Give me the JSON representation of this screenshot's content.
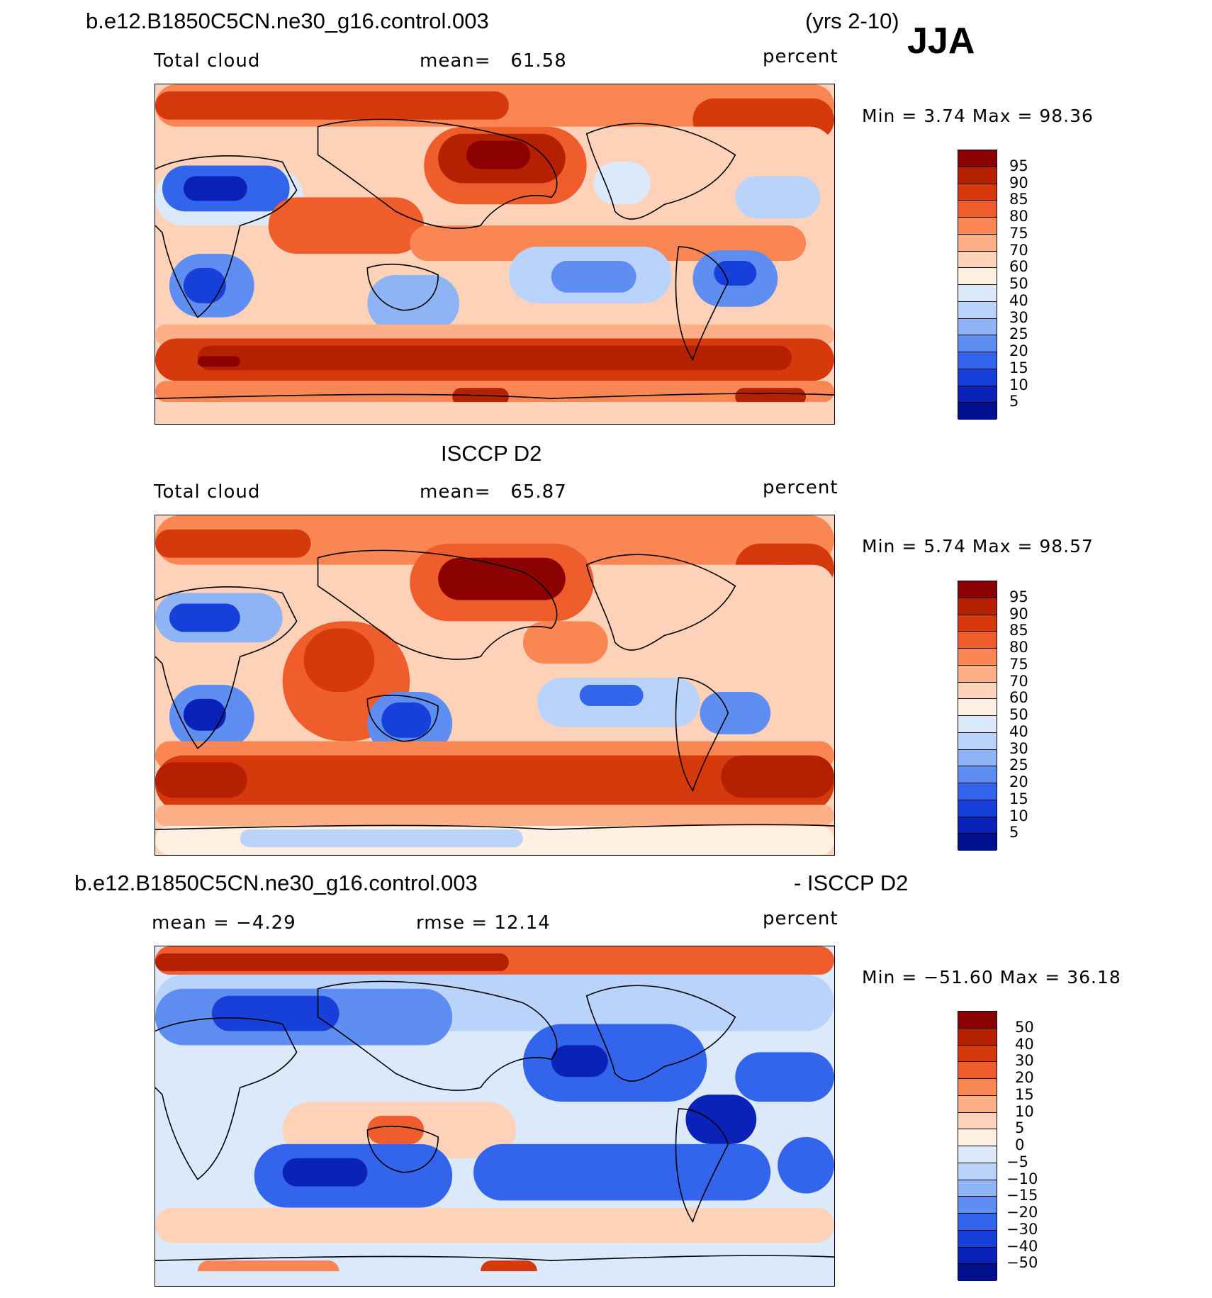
{
  "figure": {
    "case_name": "b.e12.B1850C5CN.ne30_g16.control.003",
    "years": "(yrs 2-10)",
    "season": "JJA"
  },
  "panels": [
    {
      "left_label": "Total cloud",
      "mean_label": "mean=",
      "mean_value": "61.58",
      "units": "percent",
      "min_max": "Min =     3.74 Max =   98.36",
      "levels": [
        "95",
        "90",
        "85",
        "80",
        "75",
        "70",
        "60",
        "50",
        "40",
        "30",
        "25",
        "20",
        "15",
        "10",
        "5"
      ],
      "palette": "blue-red"
    },
    {
      "title": "ISCCP D2",
      "left_label": "Total cloud",
      "mean_label": "mean=",
      "mean_value": "65.87",
      "units": "percent",
      "min_max": "Min =     5.74 Max =   98.57",
      "levels": [
        "95",
        "90",
        "85",
        "80",
        "75",
        "70",
        "60",
        "50",
        "40",
        "30",
        "25",
        "20",
        "15",
        "10",
        "5"
      ],
      "palette": "blue-red"
    },
    {
      "title_left": "b.e12.B1850C5CN.ne30_g16.control.003",
      "title_right": "- ISCCP D2",
      "mean_text": "mean =   −4.29",
      "rmse_text": "rmse =   12.14",
      "units": "percent",
      "min_max": "Min = −51.60 Max =   36.18",
      "levels": [
        "50",
        "40",
        "30",
        "20",
        "15",
        "10",
        "5",
        "0",
        "−5",
        "−10",
        "−15",
        "−20",
        "−30",
        "−40",
        "−50"
      ],
      "palette": "blue-red"
    }
  ],
  "colors": {
    "palette": [
      "#8b0000",
      "#b52000",
      "#d63a0c",
      "#ef5d2c",
      "#f98653",
      "#fdaf87",
      "#fdd2b8",
      "#fff0e2",
      "#dbe9fb",
      "#b9d3fa",
      "#8fb4f6",
      "#5e8ef2",
      "#3265ec",
      "#1640d9",
      "#0a22b8",
      "#00108c"
    ]
  }
}
